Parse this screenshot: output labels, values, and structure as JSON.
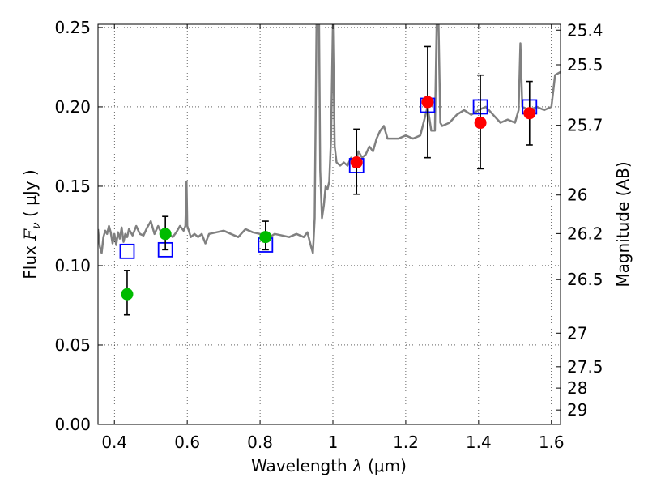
{
  "chart_data": {
    "type": "scatter",
    "xlabel_prefix": "Wavelength",
    "xlabel_symbol": "λ",
    "xlabel_unit": "(μm)",
    "ylabel_prefix": "Flux",
    "ylabel_symbol": "F",
    "ylabel_subscript": "ν",
    "ylabel_unit": "( μJy )",
    "y2label": "Magnitude (AB)",
    "xlim": [
      0.355,
      1.625
    ],
    "ylim": [
      0.0,
      0.252
    ],
    "grid": true,
    "x_ticks": [
      {
        "value": 0.4,
        "label": "0.4"
      },
      {
        "value": 0.6,
        "label": "0.6"
      },
      {
        "value": 0.8,
        "label": "0.8"
      },
      {
        "value": 1.0,
        "label": "1"
      },
      {
        "value": 1.2,
        "label": "1.2"
      },
      {
        "value": 1.4,
        "label": "1.4"
      },
      {
        "value": 1.6,
        "label": "1.6"
      }
    ],
    "y_ticks": [
      {
        "value": 0.0,
        "label": "0.00"
      },
      {
        "value": 0.05,
        "label": "0.05"
      },
      {
        "value": 0.1,
        "label": "0.10"
      },
      {
        "value": 0.15,
        "label": "0.15"
      },
      {
        "value": 0.2,
        "label": "0.20"
      },
      {
        "value": 0.25,
        "label": "0.25"
      }
    ],
    "y2_ticks": [
      {
        "flux": 0.2483,
        "label": "25.4"
      },
      {
        "flux": 0.2265,
        "label": "25.5"
      },
      {
        "flux": 0.1884,
        "label": "25.7"
      },
      {
        "flux": 0.1445,
        "label": "26"
      },
      {
        "flux": 0.1202,
        "label": "26.2"
      },
      {
        "flux": 0.0912,
        "label": "26.5"
      },
      {
        "flux": 0.0575,
        "label": "27"
      },
      {
        "flux": 0.0363,
        "label": "27.5"
      },
      {
        "flux": 0.0229,
        "label": "28"
      },
      {
        "flux": 0.0091,
        "label": "29"
      }
    ],
    "series": [
      {
        "kind": "line",
        "color": "#808080",
        "points": [
          [
            0.355,
            0.123
          ],
          [
            0.36,
            0.112
          ],
          [
            0.365,
            0.108
          ],
          [
            0.37,
            0.118
          ],
          [
            0.375,
            0.122
          ],
          [
            0.38,
            0.12
          ],
          [
            0.385,
            0.125
          ],
          [
            0.39,
            0.121
          ],
          [
            0.395,
            0.114
          ],
          [
            0.4,
            0.12
          ],
          [
            0.405,
            0.113
          ],
          [
            0.41,
            0.121
          ],
          [
            0.415,
            0.117
          ],
          [
            0.42,
            0.124
          ],
          [
            0.425,
            0.115
          ],
          [
            0.43,
            0.12
          ],
          [
            0.435,
            0.118
          ],
          [
            0.44,
            0.123
          ],
          [
            0.45,
            0.119
          ],
          [
            0.46,
            0.125
          ],
          [
            0.47,
            0.12
          ],
          [
            0.48,
            0.119
          ],
          [
            0.49,
            0.124
          ],
          [
            0.5,
            0.128
          ],
          [
            0.51,
            0.12
          ],
          [
            0.52,
            0.125
          ],
          [
            0.53,
            0.12
          ],
          [
            0.54,
            0.122
          ],
          [
            0.55,
            0.12
          ],
          [
            0.56,
            0.118
          ],
          [
            0.57,
            0.121
          ],
          [
            0.58,
            0.125
          ],
          [
            0.59,
            0.122
          ],
          [
            0.595,
            0.125
          ],
          [
            0.598,
            0.153
          ],
          [
            0.6,
            0.125
          ],
          [
            0.61,
            0.118
          ],
          [
            0.62,
            0.12
          ],
          [
            0.63,
            0.118
          ],
          [
            0.64,
            0.12
          ],
          [
            0.65,
            0.114
          ],
          [
            0.66,
            0.12
          ],
          [
            0.68,
            0.121
          ],
          [
            0.7,
            0.122
          ],
          [
            0.72,
            0.12
          ],
          [
            0.74,
            0.118
          ],
          [
            0.76,
            0.123
          ],
          [
            0.78,
            0.121
          ],
          [
            0.8,
            0.12
          ],
          [
            0.82,
            0.117
          ],
          [
            0.84,
            0.12
          ],
          [
            0.86,
            0.119
          ],
          [
            0.88,
            0.118
          ],
          [
            0.9,
            0.12
          ],
          [
            0.92,
            0.118
          ],
          [
            0.93,
            0.121
          ],
          [
            0.94,
            0.112
          ],
          [
            0.945,
            0.108
          ],
          [
            0.95,
            0.13
          ],
          [
            0.955,
            0.252
          ],
          [
            0.962,
            0.252
          ],
          [
            0.965,
            0.16
          ],
          [
            0.97,
            0.13
          ],
          [
            0.975,
            0.138
          ],
          [
            0.98,
            0.15
          ],
          [
            0.985,
            0.148
          ],
          [
            0.99,
            0.153
          ],
          [
            0.995,
            0.18
          ],
          [
            1.0,
            0.252
          ],
          [
            1.005,
            0.175
          ],
          [
            1.01,
            0.165
          ],
          [
            1.02,
            0.163
          ],
          [
            1.03,
            0.165
          ],
          [
            1.04,
            0.163
          ],
          [
            1.05,
            0.168
          ],
          [
            1.06,
            0.163
          ],
          [
            1.07,
            0.172
          ],
          [
            1.08,
            0.168
          ],
          [
            1.09,
            0.17
          ],
          [
            1.1,
            0.175
          ],
          [
            1.11,
            0.172
          ],
          [
            1.12,
            0.18
          ],
          [
            1.13,
            0.185
          ],
          [
            1.14,
            0.188
          ],
          [
            1.15,
            0.18
          ],
          [
            1.16,
            0.18
          ],
          [
            1.18,
            0.18
          ],
          [
            1.2,
            0.182
          ],
          [
            1.22,
            0.18
          ],
          [
            1.24,
            0.182
          ],
          [
            1.26,
            0.2
          ],
          [
            1.27,
            0.185
          ],
          [
            1.28,
            0.185
          ],
          [
            1.285,
            0.252
          ],
          [
            1.29,
            0.252
          ],
          [
            1.295,
            0.19
          ],
          [
            1.3,
            0.188
          ],
          [
            1.32,
            0.19
          ],
          [
            1.34,
            0.195
          ],
          [
            1.36,
            0.198
          ],
          [
            1.38,
            0.195
          ],
          [
            1.4,
            0.198
          ],
          [
            1.42,
            0.2
          ],
          [
            1.44,
            0.195
          ],
          [
            1.46,
            0.19
          ],
          [
            1.48,
            0.192
          ],
          [
            1.5,
            0.19
          ],
          [
            1.51,
            0.198
          ],
          [
            1.515,
            0.24
          ],
          [
            1.52,
            0.2
          ],
          [
            1.54,
            0.198
          ],
          [
            1.56,
            0.2
          ],
          [
            1.58,
            0.198
          ],
          [
            1.6,
            0.2
          ],
          [
            1.61,
            0.22
          ],
          [
            1.625,
            0.222
          ]
        ]
      },
      {
        "kind": "open-square",
        "color": "#0000ff",
        "points": [
          [
            0.435,
            0.109
          ],
          [
            0.54,
            0.11
          ],
          [
            0.815,
            0.113
          ],
          [
            1.065,
            0.163
          ],
          [
            1.26,
            0.201
          ],
          [
            1.405,
            0.2
          ],
          [
            1.54,
            0.2
          ]
        ]
      },
      {
        "kind": "errorbar",
        "color": "#000000",
        "points": [
          {
            "x": 0.435,
            "y": 0.082,
            "lo": 0.069,
            "hi": 0.097
          },
          {
            "x": 0.54,
            "y": 0.12,
            "lo": 0.11,
            "hi": 0.131
          },
          {
            "x": 0.815,
            "y": 0.118,
            "lo": 0.11,
            "hi": 0.128
          },
          {
            "x": 1.065,
            "y": 0.165,
            "lo": 0.145,
            "hi": 0.186
          },
          {
            "x": 1.26,
            "y": 0.203,
            "lo": 0.168,
            "hi": 0.238
          },
          {
            "x": 1.405,
            "y": 0.19,
            "lo": 0.161,
            "hi": 0.22
          },
          {
            "x": 1.54,
            "y": 0.196,
            "lo": 0.176,
            "hi": 0.216
          }
        ]
      },
      {
        "kind": "filled-circle",
        "color": "#00bb00",
        "points": [
          [
            0.435,
            0.082
          ],
          [
            0.54,
            0.12
          ],
          [
            0.815,
            0.118
          ]
        ]
      },
      {
        "kind": "filled-circle",
        "color": "#ff0000",
        "points": [
          [
            1.065,
            0.165
          ],
          [
            1.26,
            0.203
          ],
          [
            1.405,
            0.19
          ],
          [
            1.54,
            0.196
          ]
        ]
      }
    ]
  }
}
